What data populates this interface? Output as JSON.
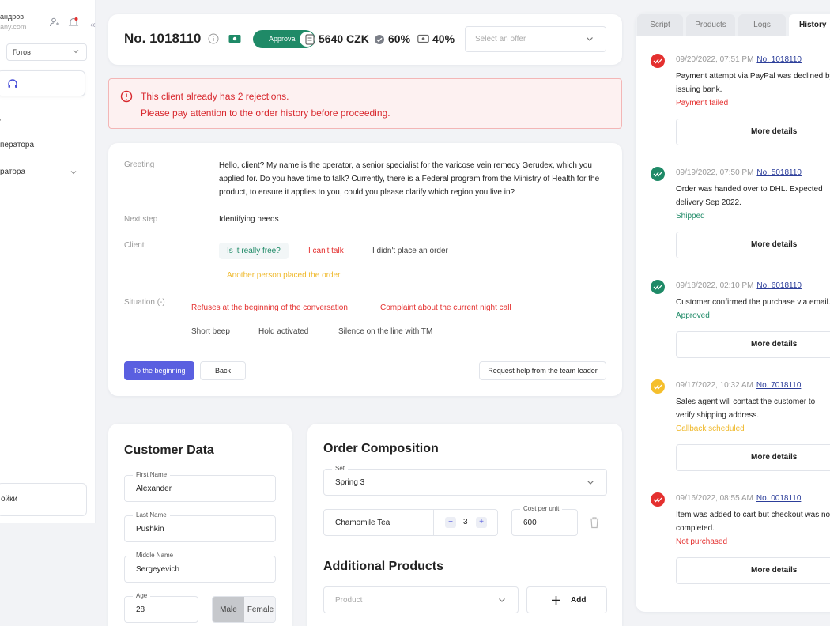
{
  "sidebar": {
    "user_name": "андров",
    "user_email": "any.com",
    "status": "Готов",
    "nav_item_1": "ператора",
    "nav_item_2": "ратора",
    "settings": "ойки",
    "collapse": "«"
  },
  "header": {
    "order_number": "No. 1018110",
    "approval_label": "Approval",
    "amount": "5640 CZK",
    "percent_1": "60%",
    "percent_2": "40%",
    "offer_placeholder": "Select an offer"
  },
  "alert": {
    "line1": "This client already has 2 rejections.",
    "line2": "Please pay attention to the order history before proceeding."
  },
  "script": {
    "greeting_label": "Greeting",
    "greeting_text": "Hello, client? My name is the operator, a senior specialist for the varicose vein remedy Gerudex, which you applied for. Do you have time to talk? Currently, there is a Federal program from the Ministry of Health for the product, to ensure it applies to you, could you please clarify which region you live in?",
    "next_step_label": "Next step",
    "next_step_text": "Identifying needs",
    "client_label": "Client",
    "client_options": [
      "Is it really free?",
      "I can't talk",
      "I didn't place an order",
      "Another person placed the order"
    ],
    "situation_label": "Situation (-)",
    "situation_options": [
      "Refuses at the beginning of the conversation",
      "Complaint about the current night call",
      "Short beep",
      "Hold activated",
      "Silence on the line with TM"
    ],
    "btn_beginning": "To the beginning",
    "btn_back": "Back",
    "btn_help": "Request help from the team leader"
  },
  "customer": {
    "title": "Customer Data",
    "first_name_label": "First Name",
    "first_name": "Alexander",
    "last_name_label": "Last Name",
    "last_name": "Pushkin",
    "middle_name_label": "Middle Name",
    "middle_name": "Sergeyevich",
    "age_label": "Age",
    "age": "28",
    "gender_male": "Male",
    "gender_female": "Female"
  },
  "order": {
    "title": "Order Composition",
    "set_label": "Set",
    "set_value": "Spring 3",
    "item_name": "Chamomile Tea",
    "qty": "3",
    "cost_label": "Cost per unit",
    "cost_value": "600",
    "additional_title": "Additional Products",
    "product_placeholder": "Product",
    "add_label": "Add"
  },
  "history": {
    "tabs": [
      "Script",
      "Products",
      "Logs",
      "History"
    ],
    "active_tab": "History",
    "more_details": "More details",
    "entries": [
      {
        "date": "09/20/2022, 07:51 PM",
        "order": "No. 1018110",
        "desc": "Payment attempt via PayPal was declined by issuing bank.",
        "status": "Payment failed",
        "status_color": "#e4302f",
        "badge_color": "#e4302f"
      },
      {
        "date": "09/19/2022, 07:50 PM",
        "order": "No. 5018110",
        "desc": "Order was handed over to DHL. Expected delivery Sep 2022.",
        "status": "Shipped",
        "status_color": "#1f8a67",
        "badge_color": "#1f8a67"
      },
      {
        "date": "09/18/2022, 02:10 PM",
        "order": "No. 6018110",
        "desc": "Customer confirmed the purchase via email.",
        "status": "Approved",
        "status_color": "#1f8a67",
        "badge_color": "#1f8a67"
      },
      {
        "date": "09/17/2022, 10:32 AM",
        "order": "No. 7018110",
        "desc": "Sales agent will contact the customer to verify shipping address.",
        "status": "Callback scheduled",
        "status_color": "#efb82a",
        "badge_color": "#f5bf2c"
      },
      {
        "date": "09/16/2022, 08:55 AM",
        "order": "No. 0018110",
        "desc": "Item was added to cart but checkout was not completed.",
        "status": "Not purchased",
        "status_color": "#e4302f",
        "badge_color": "#e4302f"
      }
    ]
  }
}
